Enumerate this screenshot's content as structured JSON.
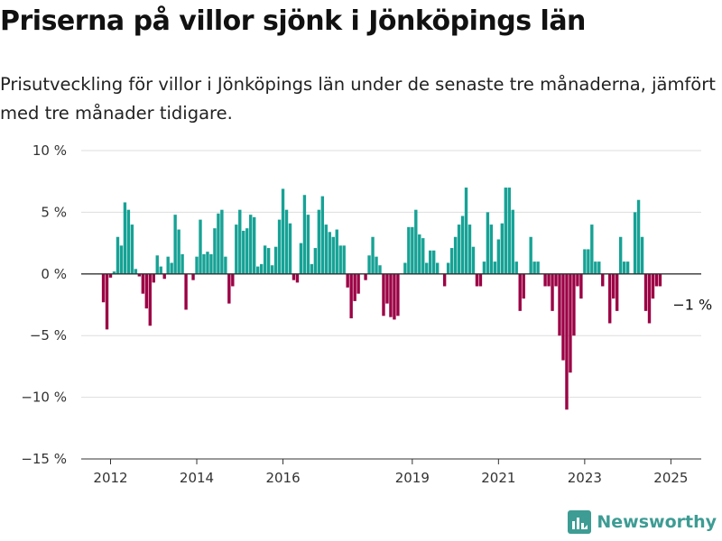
{
  "header": {
    "title": "Priserna på villor sjönk i Jönköpings län",
    "subtitle": "Prisutveckling för villor i Jönköpings län under de senaste tre månaderna, jämfört med tre månader tidigare."
  },
  "brand": {
    "name": "Newsworthy",
    "icon": "newsworthy-logo-icon",
    "color": "#3d9c94"
  },
  "chart_data": {
    "type": "bar",
    "title": "Priserna på villor sjönk i Jönköpings län",
    "subtitle": "Prisutveckling för villor i Jönköpings län under de senaste tre månaderna, jämfört med tre månader tidigare.",
    "xlabel": "",
    "ylabel": "",
    "unit": "%",
    "ylim": [
      -15,
      10
    ],
    "yticks": [
      10,
      5,
      0,
      -5,
      -10,
      -15
    ],
    "ytick_labels": [
      "10 %",
      "5 %",
      "0 %",
      "−5 %",
      "−10 %",
      "−15 %"
    ],
    "xticks": [
      {
        "label": "2012",
        "at": "2012-01"
      },
      {
        "label": "2014",
        "at": "2014-01"
      },
      {
        "label": "2016",
        "at": "2016-01"
      },
      {
        "label": "2019",
        "at": "2019-01"
      },
      {
        "label": "2021",
        "at": "2021-01"
      },
      {
        "label": "2023",
        "at": "2023-01"
      },
      {
        "label": "2025",
        "at": "2025-01"
      }
    ],
    "grid": true,
    "legend": "none",
    "colors": {
      "positive": "#16a295",
      "negative": "#9b0044",
      "grid": "#dddddd",
      "zero": "#333333"
    },
    "annotation": {
      "label": "−1 %",
      "at": "2025-02",
      "value": -1
    },
    "series": [
      {
        "start": "2011-11",
        "step": "month",
        "values": [
          -2.3,
          -4.5,
          -0.3,
          0.2,
          3.0,
          2.3,
          5.8,
          5.2,
          4.0,
          0.4,
          -0.2,
          -1.6,
          -2.8,
          -4.2,
          -0.7,
          1.5,
          0.6,
          -0.4,
          1.4,
          0.9,
          4.8,
          3.6,
          1.6,
          -2.9,
          0,
          -0.5,
          1.4,
          4.4,
          1.6,
          1.8,
          1.6,
          3.7,
          4.9,
          5.2,
          1.4,
          -2.4,
          -1.0,
          4.0,
          5.2,
          3.5,
          3.7,
          4.8,
          4.6,
          0.6,
          0.8,
          2.3,
          2.1,
          0.7,
          2.2,
          4.4,
          6.9,
          5.2,
          4.1,
          -0.5,
          -0.7,
          2.5,
          6.4,
          4.8,
          0.8,
          2.1,
          5.2,
          6.3,
          4.0,
          3.4,
          3.0,
          3.6,
          2.3,
          2.3,
          -1.1,
          -3.6,
          -2.2,
          -1.6,
          0,
          -0.5,
          1.5,
          3.0,
          1.4,
          0.7,
          -3.4,
          -2.4,
          -3.5,
          -3.7,
          -3.4,
          0,
          0.9,
          3.8,
          3.8,
          5.2,
          3.2,
          2.9,
          0.9,
          1.9,
          1.9,
          0.9,
          0,
          -1.0,
          0.9,
          2.1,
          3.0,
          4.0,
          4.7,
          7.0,
          4.0,
          2.2,
          -1.0,
          -1.0,
          1.0,
          5.0,
          4.0,
          1.0,
          2.8,
          4.1,
          7.0,
          7.0,
          5.2,
          1.0,
          -3.0,
          -2.0,
          0,
          3.0,
          1.0,
          1.0,
          0,
          -1.0,
          -1.0,
          -3.0,
          -1.0,
          -5.0,
          -7.0,
          -11.0,
          -8.0,
          -5.0,
          -1.0,
          -2.0,
          2.0,
          2.0,
          4.0,
          1.0,
          1.0,
          -1.0,
          0,
          -4.0,
          -2.0,
          -3.0,
          3.0,
          1.0,
          1.0,
          0,
          5.0,
          6.0,
          3.0,
          -3.0,
          -4.0,
          -2.0,
          -1.0,
          -1.0
        ]
      }
    ]
  }
}
